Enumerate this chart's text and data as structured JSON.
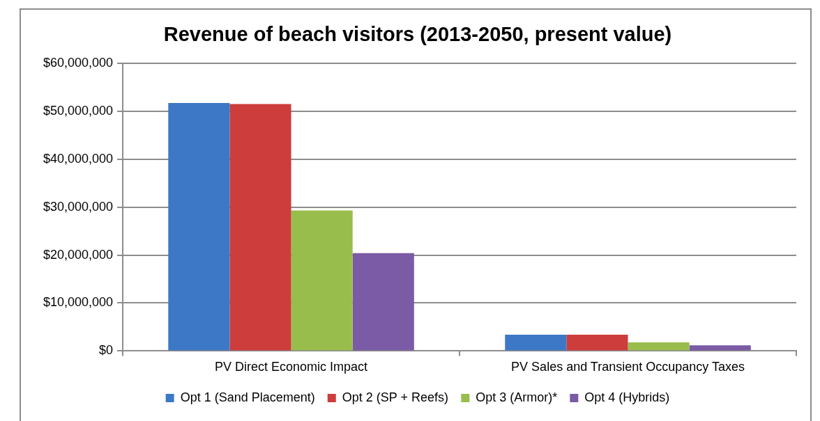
{
  "chart_data": {
    "type": "bar",
    "title": "Revenue of beach visitors (2013-2050, present value)",
    "categories": [
      "PV Direct Economic Impact",
      "PV Sales and Transient Occupancy Taxes"
    ],
    "series": [
      {
        "name": "Opt 1 (Sand Placement)",
        "color": "#3c78c6",
        "values": [
          51700000,
          3400000
        ]
      },
      {
        "name": "Opt 2 (SP + Reefs)",
        "color": "#cc3d3b",
        "values": [
          51500000,
          3400000
        ]
      },
      {
        "name": "Opt 3 (Armor)*",
        "color": "#98bd4c",
        "values": [
          29300000,
          1800000
        ]
      },
      {
        "name": "Opt 4 (Hybrids)",
        "color": "#7b5ba6",
        "values": [
          20400000,
          1200000
        ]
      }
    ],
    "ylim": [
      0,
      60000000
    ],
    "yticks": [
      {
        "value": 0,
        "label": "$0"
      },
      {
        "value": 10000000,
        "label": "$10,000,000"
      },
      {
        "value": 20000000,
        "label": "$20,000,000"
      },
      {
        "value": 30000000,
        "label": "$30,000,000"
      },
      {
        "value": 40000000,
        "label": "$40,000,000"
      },
      {
        "value": 50000000,
        "label": "$50,000,000"
      },
      {
        "value": 60000000,
        "label": "$60,000,000"
      }
    ],
    "grid": "y",
    "legend": "bottom"
  }
}
